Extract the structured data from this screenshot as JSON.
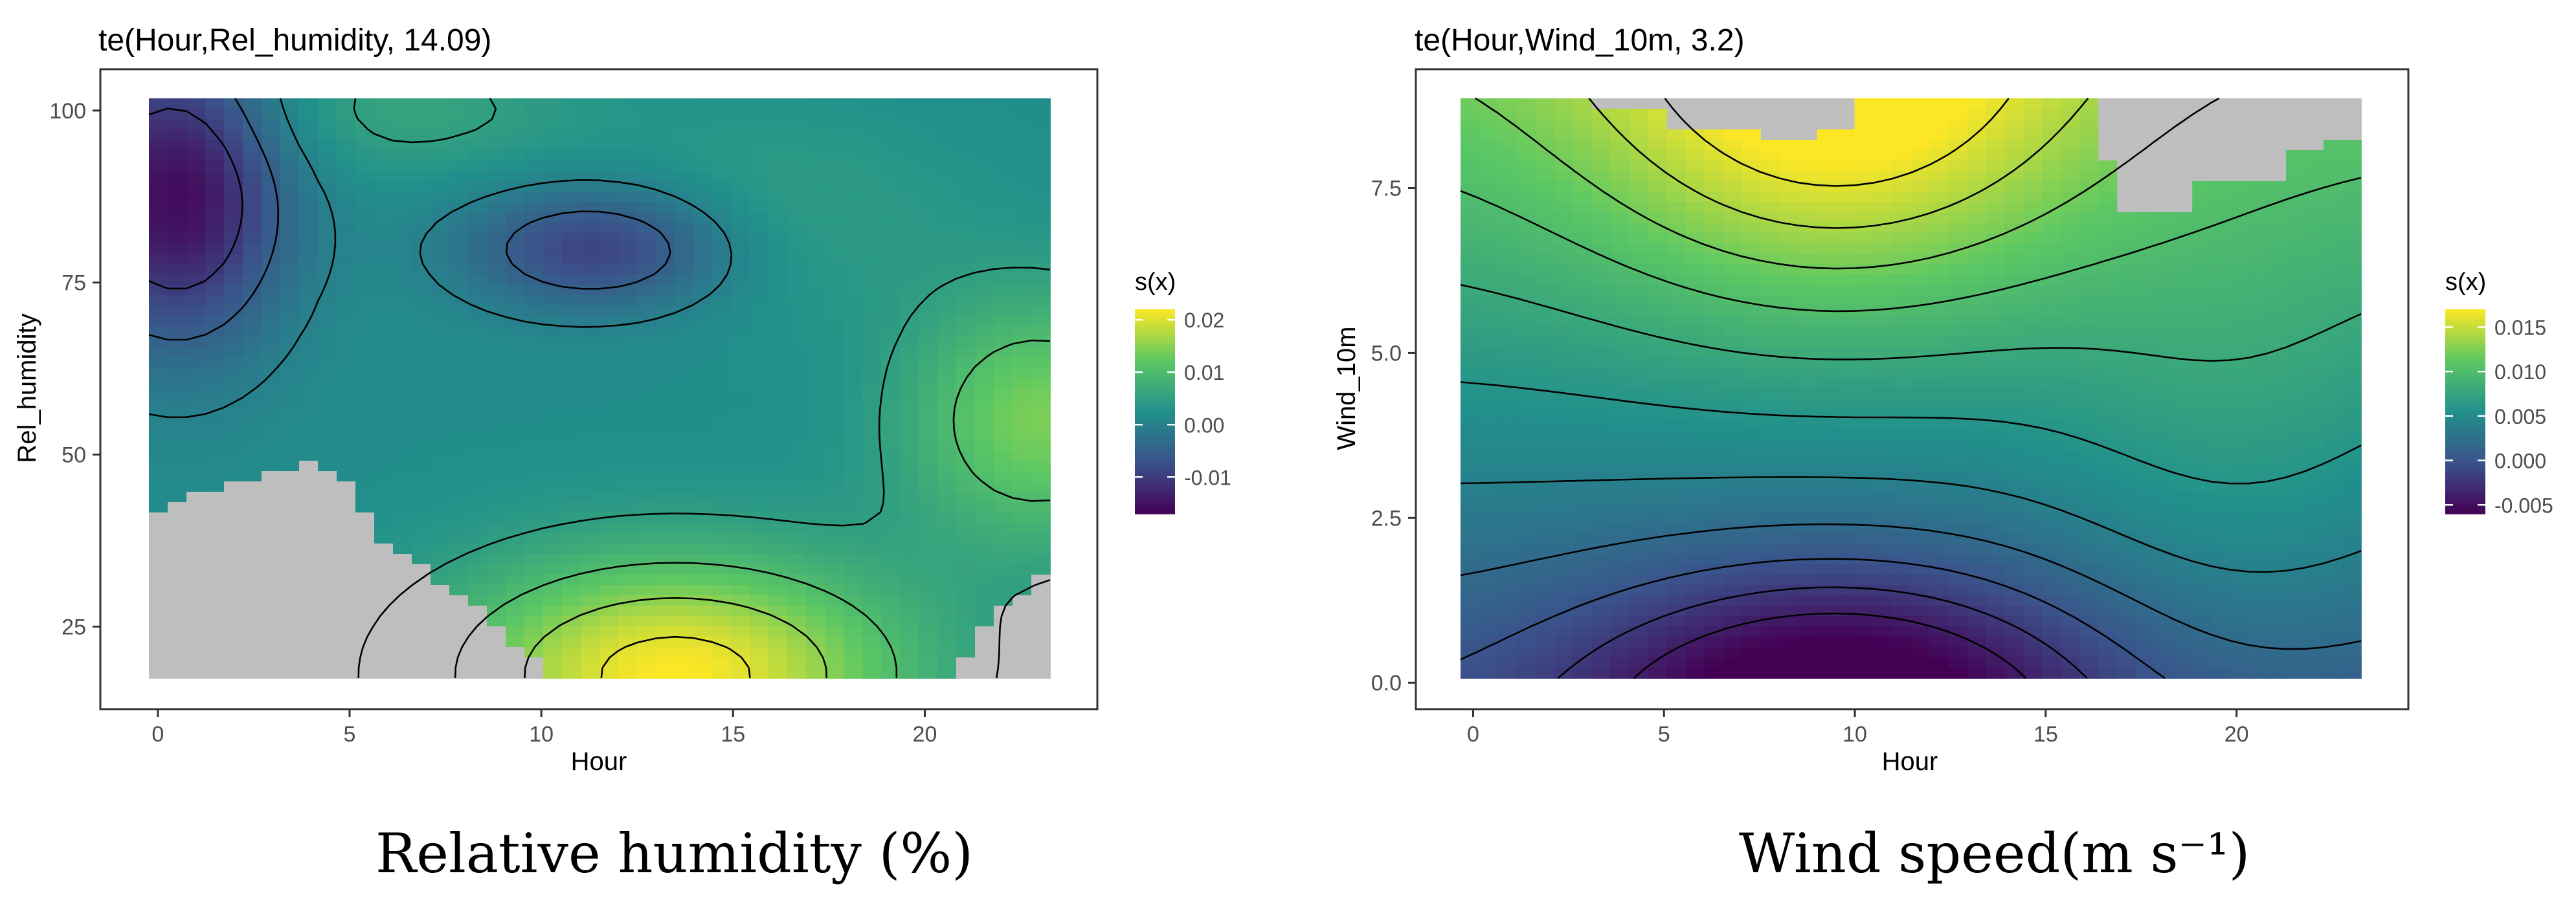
{
  "chart_data": [
    {
      "type": "heatmap",
      "title": "te(Hour,Rel_humidity, 14.09)",
      "xlabel": "Hour",
      "ylabel": "Rel_humidity",
      "xlim": [
        -1.5,
        24.5
      ],
      "ylim": [
        13,
        106
      ],
      "xticks": [
        0,
        5,
        10,
        15,
        20
      ],
      "yticks": [
        25,
        50,
        75,
        100
      ],
      "legend": {
        "title": "s(x)",
        "placement": "right",
        "range": [
          -0.017,
          0.022
        ],
        "ticks": [
          -0.01,
          0.0,
          0.01,
          0.02
        ],
        "tick_labels": [
          "-0.01",
          "0.00",
          "0.01",
          "0.02"
        ]
      },
      "grid": false,
      "colormap": [
        "#440154",
        "#3b528b",
        "#21908c",
        "#5dc863",
        "#fde725"
      ],
      "na_color": "#bebebe",
      "surface": {
        "description": "smooth tensor-product surface",
        "low_regions": [
          {
            "hour": 0.5,
            "rh": 85,
            "value": -0.017
          },
          {
            "hour": 11.5,
            "rh": 80,
            "value": -0.012
          }
        ],
        "high_regions": [
          {
            "hour": 13.5,
            "rh": 20,
            "value": 0.022
          },
          {
            "hour": 23,
            "rh": 55,
            "value": 0.012
          }
        ],
        "baseline": 0.002
      },
      "missing_region_lower_boundary": [
        [
          0,
          42
        ],
        [
          1,
          44
        ],
        [
          3,
          47
        ],
        [
          4,
          49
        ],
        [
          5,
          45
        ],
        [
          6,
          36
        ],
        [
          7,
          33
        ],
        [
          8,
          29
        ],
        [
          9,
          24
        ],
        [
          10,
          19
        ],
        [
          11,
          16
        ],
        [
          20.5,
          16
        ],
        [
          21.5,
          25
        ],
        [
          22.5,
          30
        ],
        [
          23.5,
          36
        ]
      ],
      "contour_levels": [
        -0.01,
        -0.005,
        0.0,
        0.005,
        0.01,
        0.015,
        0.02
      ]
    },
    {
      "type": "heatmap",
      "title": "te(Hour,Wind_10m, 3.2)",
      "xlabel": "Hour",
      "ylabel": "Wind_10m",
      "xlim": [
        -1.5,
        24.5
      ],
      "ylim": [
        -0.4,
        9.3
      ],
      "xticks": [
        0,
        5,
        10,
        15,
        20
      ],
      "yticks": [
        0.0,
        2.5,
        5.0,
        7.5
      ],
      "ytick_labels": [
        "0.0",
        "2.5",
        "5.0",
        "7.5"
      ],
      "legend": {
        "title": "s(x)",
        "placement": "right",
        "range": [
          -0.006,
          0.017
        ],
        "ticks": [
          -0.005,
          0.0,
          0.005,
          0.01,
          0.015
        ],
        "tick_labels": [
          "-0.005",
          "0.000",
          "0.005",
          "0.010",
          "0.015"
        ]
      },
      "grid": false,
      "colormap": [
        "#440154",
        "#3b528b",
        "#21908c",
        "#5dc863",
        "#fde725"
      ],
      "na_color": "#bebebe",
      "surface": {
        "description": "tensor-product surface: low near calm wind mid-day, high at strong wind mid-day",
        "low_point": {
          "hour": 9.5,
          "wind": 0.0,
          "value": -0.006
        },
        "high_point": {
          "hour": 10,
          "wind": 9.0,
          "value": 0.017
        }
      },
      "missing_cells": [
        {
          "hour_from": 3.2,
          "hour_to": 5.0,
          "wind_from": 8.75,
          "wind_to": 9.2
        },
        {
          "hour_from": 5.0,
          "hour_to": 7.5,
          "wind_from": 8.45,
          "wind_to": 9.2
        },
        {
          "hour_from": 7.5,
          "hour_to": 9.2,
          "wind_from": 8.3,
          "wind_to": 9.2
        },
        {
          "hour_from": 9.2,
          "hour_to": 9.8,
          "wind_from": 8.45,
          "wind_to": 9.2
        },
        {
          "hour_from": 9.8,
          "hour_to": 10.2,
          "wind_from": 8.75,
          "wind_to": 9.2
        },
        {
          "hour_from": 16.2,
          "hour_to": 17.0,
          "wind_from": 7.9,
          "wind_to": 9.2
        },
        {
          "hour_from": 17.0,
          "hour_to": 19.0,
          "wind_from": 7.2,
          "wind_to": 9.2
        },
        {
          "hour_from": 19.0,
          "hour_to": 21.3,
          "wind_from": 7.6,
          "wind_to": 9.2
        },
        {
          "hour_from": 21.3,
          "hour_to": 22.5,
          "wind_from": 8.0,
          "wind_to": 9.2
        },
        {
          "hour_from": 22.5,
          "hour_to": 23.5,
          "wind_from": 8.3,
          "wind_to": 9.2
        }
      ],
      "contour_levels": [
        -0.004,
        -0.002,
        0.0,
        0.002,
        0.004,
        0.006,
        0.008,
        0.01,
        0.012,
        0.014,
        0.016
      ]
    }
  ],
  "captions": {
    "left": "Relative humidity (%)",
    "right": "Wind speed(m s⁻¹)"
  }
}
